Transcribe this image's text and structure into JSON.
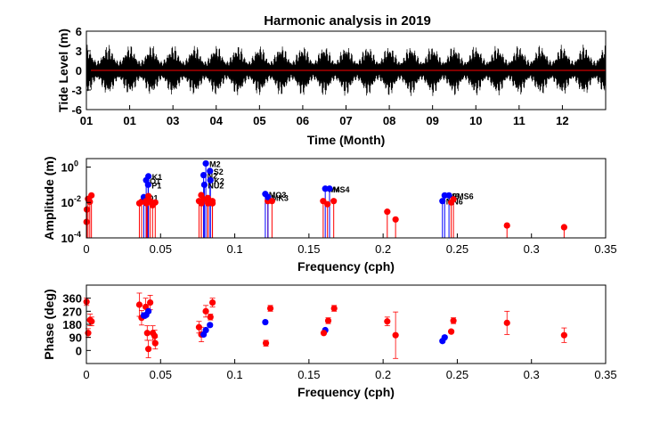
{
  "figure": {
    "title": "Harmonic analysis in 2019"
  },
  "chart_data": [
    {
      "type": "line",
      "title": "Harmonic analysis in 2019",
      "xlabel": "Time (Month)",
      "ylabel": "Tide Level (m)",
      "xticks": [
        "01",
        "01",
        "03",
        "04",
        "05",
        "06",
        "07",
        "08",
        "09",
        "10",
        "11",
        "12"
      ],
      "xlim": [
        0,
        12
      ],
      "ylim": [
        -6,
        6
      ],
      "yticks": [
        -6,
        -3,
        0,
        3,
        6
      ],
      "series": [
        {
          "kind": "observed",
          "color": "#000000",
          "envelope_amplitude_m": [
            1.5,
            4.0
          ]
        },
        {
          "kind": "residual",
          "color": "#ff0000",
          "values_m": [
            0
          ]
        }
      ]
    },
    {
      "type": "scatter",
      "xlabel": "Frequency (cph)",
      "ylabel": "Amplitude (m)",
      "yscale": "log",
      "xlim": [
        0,
        0.35
      ],
      "ylim": [
        0.0001,
        3
      ],
      "xticks": [
        "0",
        "0.05",
        "0.1",
        "0.15",
        "0.2",
        "0.25",
        "0.3",
        "0.35"
      ],
      "yticks": [
        {
          "value": 1,
          "label": "10",
          "exp": "0"
        },
        {
          "value": 0.01,
          "label": "10",
          "exp": "-2"
        },
        {
          "value": 0.0001,
          "label": "10",
          "exp": "-4"
        }
      ],
      "points": [
        {
          "f": 0.0001,
          "a": 0.0008,
          "c": "red"
        },
        {
          "f": 0.0003,
          "a": 0.004,
          "c": "red"
        },
        {
          "f": 0.0011,
          "a": 0.016,
          "c": "red"
        },
        {
          "f": 0.0023,
          "a": 0.011,
          "c": "red"
        },
        {
          "f": 0.0034,
          "a": 0.025,
          "c": "red"
        },
        {
          "f": 0.0357,
          "a": 0.009,
          "c": "red"
        },
        {
          "f": 0.0372,
          "a": 0.011,
          "c": "red"
        },
        {
          "f": 0.0387,
          "a": 0.02,
          "c": "blue",
          "label": "Q1"
        },
        {
          "f": 0.0402,
          "a": 0.012,
          "c": "red"
        },
        {
          "f": 0.0403,
          "a": 0.18,
          "c": "blue",
          "label": "O1"
        },
        {
          "f": 0.0405,
          "a": 0.009,
          "c": "red"
        },
        {
          "f": 0.0411,
          "a": 0.011,
          "c": "red"
        },
        {
          "f": 0.0416,
          "a": 0.011,
          "c": "red"
        },
        {
          "f": 0.0417,
          "a": 0.012,
          "c": "red"
        },
        {
          "f": 0.0418,
          "a": 0.023,
          "c": "red"
        },
        {
          "f": 0.0416,
          "a": 0.1,
          "c": "blue",
          "label": "P1"
        },
        {
          "f": 0.0418,
          "a": 0.3,
          "c": "blue",
          "label": "K1"
        },
        {
          "f": 0.043,
          "a": 0.012,
          "c": "red"
        },
        {
          "f": 0.0446,
          "a": 0.007,
          "c": "red"
        },
        {
          "f": 0.0464,
          "a": 0.01,
          "c": "red"
        },
        {
          "f": 0.0759,
          "a": 0.012,
          "c": "red"
        },
        {
          "f": 0.0774,
          "a": 0.026,
          "c": "red"
        },
        {
          "f": 0.0775,
          "a": 0.009,
          "c": "red"
        },
        {
          "f": 0.079,
          "a": 0.015,
          "c": "red"
        },
        {
          "f": 0.0795,
          "a": 0.1,
          "c": "blue",
          "label": "NU2"
        },
        {
          "f": 0.079,
          "a": 0.35,
          "c": "blue",
          "label": "N2"
        },
        {
          "f": 0.0805,
          "a": 1.6,
          "c": "blue",
          "label": "M2"
        },
        {
          "f": 0.0818,
          "a": 0.018,
          "c": "red"
        },
        {
          "f": 0.082,
          "a": 0.009,
          "c": "red"
        },
        {
          "f": 0.0833,
          "a": 0.6,
          "c": "blue",
          "label": "S2"
        },
        {
          "f": 0.0836,
          "a": 0.18,
          "c": "blue",
          "label": "K2"
        },
        {
          "f": 0.0849,
          "a": 0.012,
          "c": "red"
        },
        {
          "f": 0.085,
          "a": 0.009,
          "c": "red"
        },
        {
          "f": 0.1206,
          "a": 0.03,
          "c": "blue",
          "label": "MO3"
        },
        {
          "f": 0.1223,
          "a": 0.012,
          "c": "red"
        },
        {
          "f": 0.1224,
          "a": 0.02,
          "c": "blue",
          "label": "MK3"
        },
        {
          "f": 0.1251,
          "a": 0.012,
          "c": "red"
        },
        {
          "f": 0.1596,
          "a": 0.012,
          "c": "red"
        },
        {
          "f": 0.161,
          "a": 0.06,
          "c": "blue",
          "label": "M4"
        },
        {
          "f": 0.1625,
          "a": 0.008,
          "c": "red"
        },
        {
          "f": 0.1639,
          "a": 0.06,
          "c": "blue",
          "label": "MS4"
        },
        {
          "f": 0.1667,
          "a": 0.012,
          "c": "red"
        },
        {
          "f": 0.2028,
          "a": 0.003,
          "c": "red"
        },
        {
          "f": 0.2084,
          "a": 0.0011,
          "c": "red"
        },
        {
          "f": 0.24,
          "a": 0.012,
          "c": "blue",
          "label": "MN6"
        },
        {
          "f": 0.2415,
          "a": 0.025,
          "c": "blue",
          "label": "M6"
        },
        {
          "f": 0.2444,
          "a": 0.025,
          "c": "blue",
          "label": "2MS6"
        },
        {
          "f": 0.2459,
          "a": 0.01,
          "c": "red"
        },
        {
          "f": 0.2474,
          "a": 0.015,
          "c": "red"
        },
        {
          "f": 0.2835,
          "a": 0.0005,
          "c": "red"
        },
        {
          "f": 0.322,
          "a": 0.0004,
          "c": "red"
        }
      ]
    },
    {
      "type": "scatter",
      "xlabel": "Frequency (cph)",
      "ylabel": "Phase (deg)",
      "xlim": [
        0,
        0.35
      ],
      "ylim": [
        -90,
        450
      ],
      "xticks": [
        "0",
        "0.05",
        "0.1",
        "0.15",
        "0.2",
        "0.25",
        "0.3",
        "0.35"
      ],
      "yticks": [
        0,
        90,
        180,
        270,
        360
      ],
      "points": [
        {
          "f": 0.0001,
          "p": 335,
          "err": 25,
          "c": "red"
        },
        {
          "f": 0.0012,
          "p": 120,
          "err": 30,
          "c": "red"
        },
        {
          "f": 0.0025,
          "p": 210,
          "err": 40,
          "c": "red"
        },
        {
          "f": 0.0035,
          "p": 200,
          "err": 30,
          "c": "red"
        },
        {
          "f": 0.0357,
          "p": 315,
          "err": 80,
          "c": "red"
        },
        {
          "f": 0.0372,
          "p": 225,
          "err": 50,
          "c": "red"
        },
        {
          "f": 0.0387,
          "p": 240,
          "err": 20,
          "c": "blue"
        },
        {
          "f": 0.04,
          "p": 300,
          "err": 60,
          "c": "red"
        },
        {
          "f": 0.0403,
          "p": 245,
          "err": 10,
          "c": "blue"
        },
        {
          "f": 0.041,
          "p": 120,
          "err": 50,
          "c": "red"
        },
        {
          "f": 0.0418,
          "p": 270,
          "err": 10,
          "c": "blue"
        },
        {
          "f": 0.0418,
          "p": 10,
          "err": 60,
          "c": "red"
        },
        {
          "f": 0.043,
          "p": 330,
          "err": 50,
          "c": "red"
        },
        {
          "f": 0.0448,
          "p": 120,
          "err": 50,
          "c": "red"
        },
        {
          "f": 0.0464,
          "p": 50,
          "err": 40,
          "c": "red"
        },
        {
          "f": 0.046,
          "p": 100,
          "err": 40,
          "c": "red"
        },
        {
          "f": 0.0759,
          "p": 160,
          "err": 40,
          "c": "red"
        },
        {
          "f": 0.0775,
          "p": 110,
          "err": 50,
          "c": "red"
        },
        {
          "f": 0.079,
          "p": 110,
          "err": 10,
          "c": "blue"
        },
        {
          "f": 0.0805,
          "p": 270,
          "err": 40,
          "c": "red"
        },
        {
          "f": 0.0805,
          "p": 140,
          "err": 10,
          "c": "blue"
        },
        {
          "f": 0.0833,
          "p": 175,
          "err": 10,
          "c": "blue"
        },
        {
          "f": 0.0836,
          "p": 230,
          "err": 20,
          "c": "red"
        },
        {
          "f": 0.085,
          "p": 330,
          "err": 30,
          "c": "red"
        },
        {
          "f": 0.1206,
          "p": 195,
          "err": 10,
          "c": "blue"
        },
        {
          "f": 0.121,
          "p": 50,
          "err": 20,
          "c": "red"
        },
        {
          "f": 0.124,
          "p": 290,
          "err": 20,
          "c": "red"
        },
        {
          "f": 0.161,
          "p": 140,
          "err": 10,
          "c": "blue"
        },
        {
          "f": 0.16,
          "p": 120,
          "err": 10,
          "c": "red"
        },
        {
          "f": 0.163,
          "p": 205,
          "err": 20,
          "c": "red"
        },
        {
          "f": 0.167,
          "p": 290,
          "err": 20,
          "c": "red"
        },
        {
          "f": 0.2028,
          "p": 200,
          "err": 30,
          "c": "red"
        },
        {
          "f": 0.2084,
          "p": 105,
          "err": 160,
          "c": "red"
        },
        {
          "f": 0.24,
          "p": 65,
          "err": 10,
          "c": "blue"
        },
        {
          "f": 0.2415,
          "p": 90,
          "err": 10,
          "c": "blue"
        },
        {
          "f": 0.2459,
          "p": 130,
          "err": 10,
          "c": "red"
        },
        {
          "f": 0.2474,
          "p": 205,
          "err": 20,
          "c": "red"
        },
        {
          "f": 0.2835,
          "p": 190,
          "err": 80,
          "c": "red"
        },
        {
          "f": 0.322,
          "p": 105,
          "err": 50,
          "c": "red"
        }
      ]
    }
  ]
}
